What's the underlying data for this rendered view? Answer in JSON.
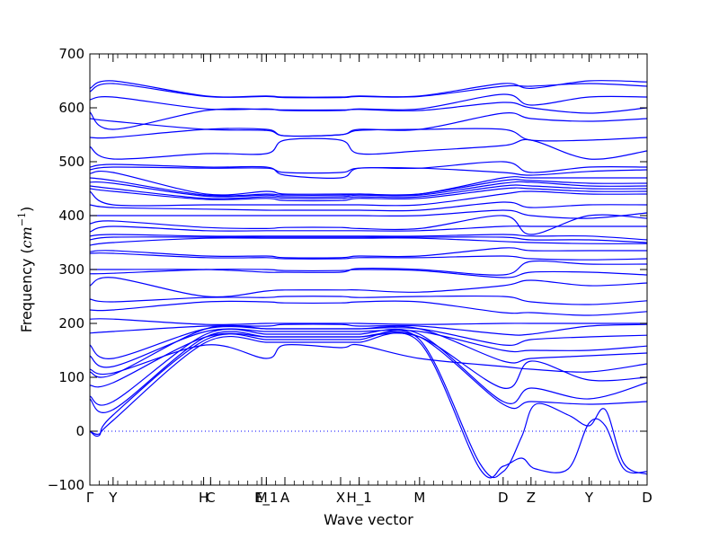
{
  "chart_data": {
    "type": "line",
    "title": "",
    "xlabel": "Wave vector",
    "ylabel_prefix": "Frequency (",
    "ylabel_unit_base": "cm",
    "ylabel_unit_exp": "−1",
    "ylabel_suffix": ")",
    "ylim": [
      -100,
      700
    ],
    "yticks": [
      "700",
      "600",
      "500",
      "400",
      "300",
      "200",
      "100",
      "0",
      "−100"
    ],
    "ytick_values": [
      700,
      600,
      500,
      400,
      300,
      200,
      100,
      0,
      -100
    ],
    "xlim": [
      0,
      12
    ],
    "path_points": [
      {
        "label": "Γ",
        "x": 0
      },
      {
        "label": "Y",
        "x": 0.5
      },
      {
        "label": "H",
        "x": 2.45
      },
      {
        "label": "C",
        "x": 2.6
      },
      {
        "label": "M",
        "x": 3.7
      },
      {
        "label": "E_1",
        "x": 3.8
      },
      {
        "label": "A",
        "x": 4.2
      },
      {
        "label": "X",
        "x": 5.4
      },
      {
        "label": "H_1",
        "x": 5.8
      },
      {
        "label": "M",
        "x": 7.1
      },
      {
        "label": "D",
        "x": 8.9
      },
      {
        "label": "Z",
        "x": 9.5
      },
      {
        "label": "Y",
        "x": 10.75
      },
      {
        "label": "D",
        "x": 12
      }
    ],
    "zero_line": true,
    "line_color": "#0000ff",
    "grid": false,
    "series": [
      {
        "x": [
          0,
          0.5,
          2.5,
          3.8,
          4.2,
          5.4,
          5.8,
          7.1,
          8.9,
          9.5,
          10.75,
          12
        ],
        "y": [
          636,
          650,
          622,
          622,
          620,
          620,
          622,
          622,
          645,
          636,
          650,
          648
        ]
      },
      {
        "x": [
          0,
          0.5,
          2.5,
          3.8,
          4.2,
          5.4,
          5.8,
          7.1,
          8.9,
          9.5,
          10.75,
          12
        ],
        "y": [
          630,
          645,
          621,
          621,
          619,
          619,
          621,
          621,
          640,
          640,
          645,
          640
        ]
      },
      {
        "x": [
          0,
          0.5,
          2.5,
          3.8,
          4.2,
          5.4,
          5.8,
          7.1,
          8.9,
          9.5,
          10.75,
          12
        ],
        "y": [
          615,
          620,
          598,
          598,
          595,
          595,
          598,
          598,
          625,
          605,
          620,
          620
        ]
      },
      {
        "x": [
          0,
          0.5,
          2.5,
          3.8,
          4.2,
          5.4,
          5.8,
          7.1,
          8.9,
          9.5,
          10.75,
          12
        ],
        "y": [
          592,
          560,
          595,
          597,
          596,
          596,
          597,
          595,
          610,
          600,
          590,
          600
        ]
      },
      {
        "x": [
          0,
          0.5,
          2.5,
          3.8,
          4.2,
          5.4,
          5.8,
          7.1,
          8.9,
          9.5,
          10.75,
          12
        ],
        "y": [
          580,
          575,
          560,
          558,
          548,
          550,
          560,
          560,
          590,
          580,
          575,
          580
        ]
      },
      {
        "x": [
          0,
          0.5,
          2.5,
          3.8,
          4.2,
          5.4,
          5.8,
          7.1,
          8.9,
          9.5,
          10.75,
          12
        ],
        "y": [
          545,
          545,
          560,
          560,
          548,
          550,
          558,
          560,
          560,
          540,
          540,
          545
        ]
      },
      {
        "x": [
          0,
          0.5,
          2.5,
          3.8,
          4.2,
          5.4,
          5.8,
          7.1,
          8.9,
          9.5,
          10.75,
          12
        ],
        "y": [
          528,
          505,
          515,
          515,
          540,
          540,
          515,
          520,
          530,
          540,
          505,
          520
        ]
      },
      {
        "x": [
          0,
          0.5,
          2.5,
          3.8,
          4.2,
          5.4,
          5.8,
          7.1,
          8.9,
          9.5,
          10.75,
          12
        ],
        "y": [
          490,
          495,
          490,
          490,
          475,
          470,
          488,
          488,
          500,
          480,
          490,
          490
        ]
      },
      {
        "x": [
          0,
          0.5,
          2.5,
          3.8,
          4.2,
          5.4,
          5.8,
          7.1,
          8.9,
          9.5,
          10.75,
          12
        ],
        "y": [
          485,
          490,
          488,
          488,
          480,
          480,
          488,
          488,
          480,
          475,
          482,
          485
        ]
      },
      {
        "x": [
          0,
          0.5,
          2.5,
          3.8,
          4.2,
          5.4,
          5.8,
          7.1,
          8.9,
          9.5,
          10.75,
          12
        ],
        "y": [
          478,
          480,
          440,
          445,
          440,
          440,
          440,
          440,
          470,
          470,
          470,
          470
        ]
      },
      {
        "x": [
          0,
          0.5,
          2.5,
          3.8,
          4.2,
          5.4,
          5.8,
          7.1,
          8.9,
          9.5,
          10.75,
          12
        ],
        "y": [
          470,
          465,
          438,
          440,
          438,
          438,
          440,
          440,
          465,
          465,
          460,
          460
        ]
      },
      {
        "x": [
          0,
          0.5,
          2.5,
          3.8,
          4.2,
          5.4,
          5.8,
          7.1,
          8.9,
          9.5,
          10.75,
          12
        ],
        "y": [
          462,
          460,
          436,
          438,
          435,
          435,
          438,
          438,
          460,
          462,
          455,
          455
        ]
      },
      {
        "x": [
          0,
          0.5,
          2.5,
          3.8,
          4.2,
          5.4,
          5.8,
          7.1,
          8.9,
          9.5,
          10.75,
          12
        ],
        "y": [
          455,
          450,
          432,
          435,
          432,
          432,
          435,
          435,
          455,
          455,
          450,
          450
        ]
      },
      {
        "x": [
          0,
          0.5,
          2.5,
          3.8,
          4.2,
          5.4,
          5.8,
          7.1,
          8.9,
          9.5,
          10.75,
          12
        ],
        "y": [
          450,
          445,
          430,
          432,
          428,
          428,
          432,
          432,
          450,
          450,
          445,
          445
        ]
      },
      {
        "x": [
          0,
          0.5,
          2.5,
          3.8,
          4.2,
          5.4,
          5.8,
          7.1,
          8.9,
          9.5,
          10.75,
          12
        ],
        "y": [
          445,
          420,
          420,
          420,
          420,
          420,
          420,
          420,
          440,
          445,
          440,
          440
        ]
      },
      {
        "x": [
          0,
          0.5,
          2.5,
          3.8,
          4.2,
          5.4,
          5.8,
          7.1,
          8.9,
          9.5,
          10.75,
          12
        ],
        "y": [
          420,
          415,
          412,
          410,
          410,
          410,
          410,
          410,
          425,
          415,
          420,
          420
        ]
      },
      {
        "x": [
          0,
          0.5,
          2.5,
          3.8,
          4.2,
          5.4,
          5.8,
          7.1,
          8.9,
          9.5,
          10.75,
          12
        ],
        "y": [
          400,
          400,
          400,
          400,
          400,
          400,
          400,
          400,
          410,
          400,
          395,
          405
        ]
      },
      {
        "x": [
          0,
          0.5,
          2.5,
          3.8,
          4.2,
          5.4,
          5.8,
          7.1,
          8.9,
          9.5,
          10.75,
          12
        ],
        "y": [
          385,
          390,
          378,
          376,
          378,
          378,
          376,
          376,
          400,
          365,
          400,
          395
        ]
      },
      {
        "x": [
          0,
          0.5,
          2.5,
          3.8,
          4.2,
          5.4,
          5.8,
          7.1,
          8.9,
          9.5,
          10.75,
          12
        ],
        "y": [
          370,
          380,
          372,
          372,
          372,
          372,
          372,
          372,
          380,
          380,
          380,
          380
        ]
      },
      {
        "x": [
          0,
          0.5,
          2.5,
          3.8,
          4.2,
          5.4,
          5.8,
          7.1,
          8.9,
          9.5,
          10.75,
          12
        ],
        "y": [
          362,
          365,
          362,
          362,
          362,
          362,
          362,
          362,
          365,
          362,
          362,
          355
        ]
      },
      {
        "x": [
          0,
          0.5,
          2.5,
          3.8,
          4.2,
          5.4,
          5.8,
          7.1,
          8.9,
          9.5,
          10.75,
          12
        ],
        "y": [
          355,
          360,
          360,
          360,
          360,
          360,
          360,
          360,
          360,
          355,
          355,
          350
        ]
      },
      {
        "x": [
          0,
          0.5,
          2.5,
          3.8,
          4.2,
          5.4,
          5.8,
          7.1,
          8.9,
          9.5,
          10.75,
          12
        ],
        "y": [
          345,
          350,
          358,
          358,
          358,
          358,
          358,
          358,
          352,
          350,
          348,
          348
        ]
      },
      {
        "x": [
          0,
          0.5,
          2.5,
          3.8,
          4.2,
          5.4,
          5.8,
          7.1,
          8.9,
          9.5,
          10.75,
          12
        ],
        "y": [
          333,
          335,
          325,
          325,
          322,
          322,
          325,
          325,
          340,
          335,
          335,
          335
        ]
      },
      {
        "x": [
          0,
          0.5,
          2.5,
          3.8,
          4.2,
          5.4,
          5.8,
          7.1,
          8.9,
          9.5,
          10.75,
          12
        ],
        "y": [
          330,
          330,
          322,
          322,
          320,
          320,
          322,
          322,
          325,
          320,
          318,
          320
        ]
      },
      {
        "x": [
          0,
          0.5,
          2.5,
          3.8,
          4.2,
          5.4,
          5.8,
          7.1,
          8.9,
          9.5,
          10.75,
          12
        ],
        "y": [
          300,
          300,
          300,
          295,
          295,
          295,
          302,
          300,
          290,
          315,
          310,
          310
        ]
      },
      {
        "x": [
          0,
          0.5,
          2.5,
          3.8,
          4.2,
          5.4,
          5.8,
          7.1,
          8.9,
          9.5,
          10.75,
          12
        ],
        "y": [
          292,
          293,
          300,
          300,
          298,
          298,
          300,
          298,
          285,
          295,
          295,
          290
        ]
      },
      {
        "x": [
          0,
          0.5,
          2.5,
          3.8,
          4.2,
          5.4,
          5.8,
          7.1,
          8.9,
          9.5,
          10.75,
          12
        ],
        "y": [
          270,
          285,
          250,
          260,
          262,
          262,
          262,
          258,
          270,
          280,
          270,
          275
        ]
      },
      {
        "x": [
          0,
          0.5,
          2.5,
          3.8,
          4.2,
          5.4,
          5.8,
          7.1,
          8.9,
          9.5,
          10.75,
          12
        ],
        "y": [
          245,
          240,
          248,
          248,
          250,
          250,
          248,
          250,
          250,
          240,
          235,
          242
        ]
      },
      {
        "x": [
          0,
          0.5,
          2.5,
          3.8,
          4.2,
          5.4,
          5.8,
          7.1,
          8.9,
          9.5,
          10.75,
          12
        ],
        "y": [
          225,
          225,
          240,
          240,
          238,
          238,
          240,
          240,
          220,
          220,
          215,
          222
        ]
      },
      {
        "x": [
          0,
          0.5,
          2.5,
          3.8,
          4.2,
          5.4,
          5.8,
          7.1,
          8.9,
          9.5,
          10.75,
          12
        ],
        "y": [
          208,
          208,
          198,
          200,
          200,
          200,
          200,
          198,
          200,
          200,
          200,
          200
        ]
      },
      {
        "x": [
          0,
          0.5,
          2.5,
          3.8,
          4.2,
          5.4,
          5.8,
          7.1,
          8.9,
          9.5,
          10.75,
          12
        ],
        "y": [
          182,
          185,
          195,
          195,
          198,
          198,
          195,
          195,
          180,
          180,
          195,
          198
        ]
      },
      {
        "x": [
          0,
          0.5,
          2.5,
          3.8,
          4.2,
          5.4,
          5.8,
          7.1,
          8.9,
          9.5,
          10.75,
          12
        ],
        "y": [
          160,
          135,
          190,
          190,
          190,
          190,
          190,
          190,
          160,
          170,
          175,
          178
        ]
      },
      {
        "x": [
          0,
          0.5,
          2.5,
          3.8,
          4.2,
          5.4,
          5.8,
          7.1,
          8.9,
          9.5,
          10.75,
          12
        ],
        "y": [
          140,
          120,
          185,
          185,
          185,
          185,
          185,
          185,
          150,
          150,
          150,
          158
        ]
      },
      {
        "x": [
          0,
          0.5,
          2.5,
          3.8,
          4.2,
          5.4,
          5.8,
          7.1,
          8.9,
          9.5,
          10.75,
          12
        ],
        "y": [
          115,
          108,
          160,
          135,
          160,
          155,
          160,
          135,
          120,
          115,
          110,
          125
        ]
      },
      {
        "x": [
          0,
          0.5,
          2.5,
          3.8,
          4.2,
          5.4,
          5.8,
          7.1,
          8.9,
          9.5,
          10.75,
          12
        ],
        "y": [
          110,
          105,
          190,
          190,
          190,
          190,
          190,
          190,
          130,
          135,
          140,
          145
        ]
      },
      {
        "x": [
          0,
          0.5,
          2.5,
          3.8,
          4.2,
          5.4,
          5.8,
          7.1,
          8.9,
          9.5,
          10.75,
          12
        ],
        "y": [
          85,
          90,
          175,
          175,
          175,
          175,
          175,
          175,
          80,
          130,
          95,
          100
        ]
      },
      {
        "x": [
          0,
          0.5,
          2.5,
          3.8,
          4.2,
          5.4,
          5.8,
          7.1,
          8.9,
          9.5,
          10.75,
          12
        ],
        "y": [
          65,
          55,
          180,
          180,
          180,
          180,
          180,
          180,
          55,
          80,
          60,
          90
        ]
      },
      {
        "x": [
          0,
          0.5,
          2.5,
          3.8,
          4.2,
          5.4,
          5.8,
          7.1,
          8.9,
          9.5,
          10.75,
          12
        ],
        "y": [
          60,
          40,
          175,
          175,
          175,
          175,
          175,
          175,
          50,
          55,
          50,
          55
        ]
      },
      {
        "x": [
          0,
          0.2,
          0.5,
          2.5,
          3.8,
          4.2,
          5.4,
          5.8,
          7.1,
          8.4,
          8.9,
          9.3,
          9.6,
          10.3,
          10.75,
          11.1,
          11.5,
          12
        ],
        "y": [
          0,
          -8,
          30,
          170,
          170,
          170,
          170,
          170,
          170,
          -60,
          -75,
          -10,
          50,
          30,
          10,
          40,
          -60,
          -80
        ]
      },
      {
        "x": [
          0,
          0.2,
          0.5,
          2.5,
          3.8,
          4.2,
          5.4,
          5.8,
          7.1,
          8.4,
          8.9,
          9.3,
          9.6,
          10.3,
          10.75,
          11.1,
          11.5,
          12
        ],
        "y": [
          0,
          -5,
          20,
          165,
          165,
          165,
          165,
          165,
          165,
          -70,
          -65,
          -50,
          -70,
          -70,
          15,
          10,
          -70,
          -75
        ]
      }
    ]
  }
}
